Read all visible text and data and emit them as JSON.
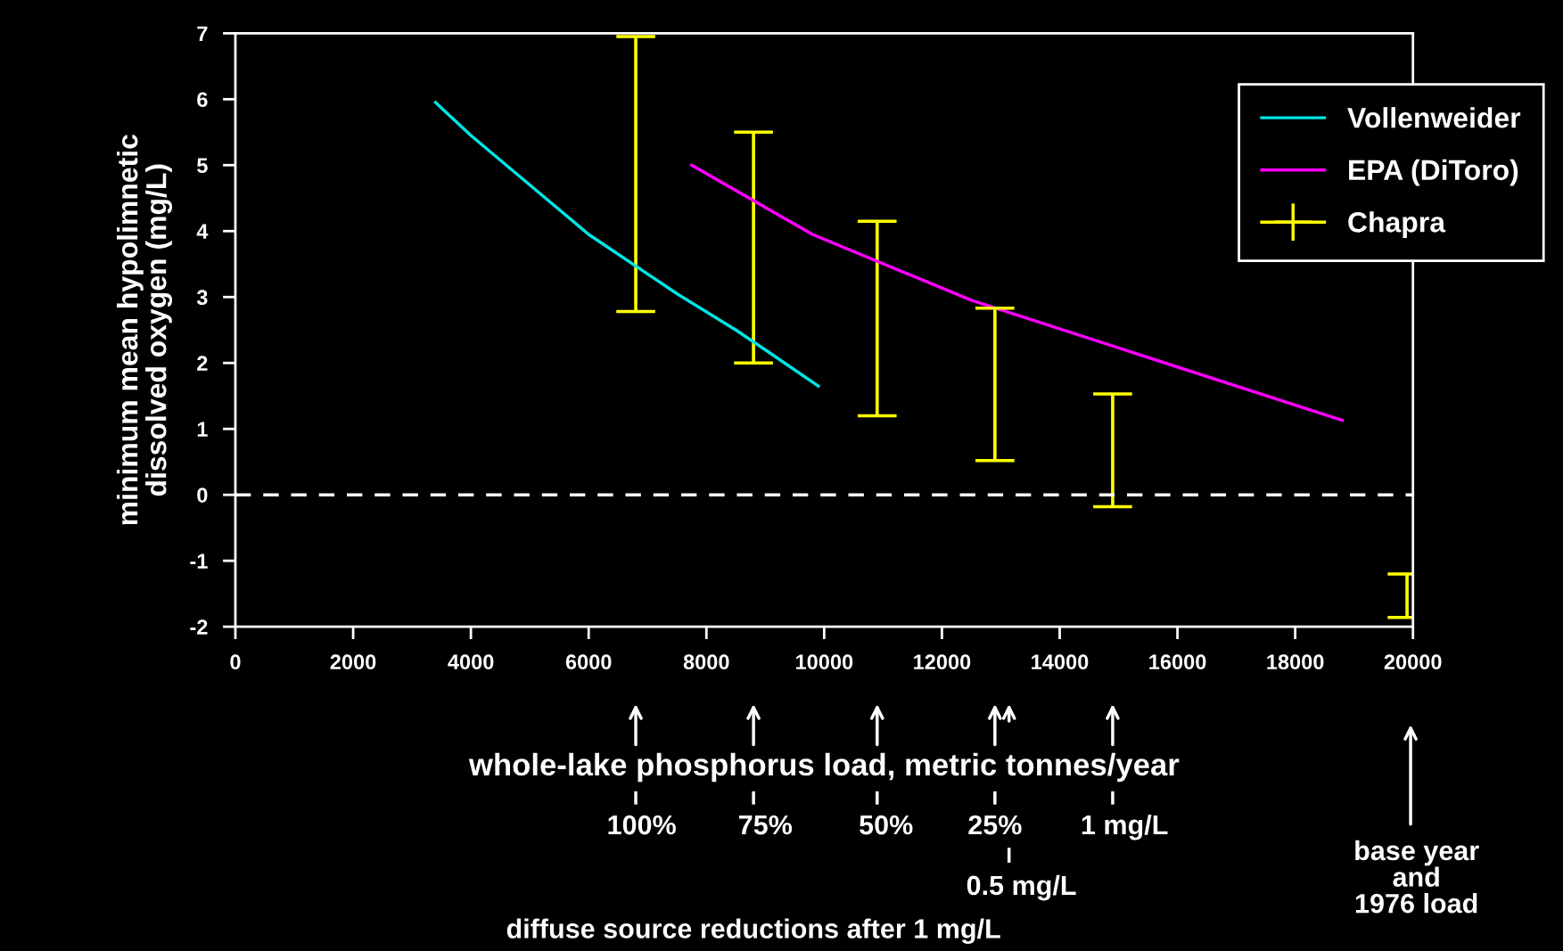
{
  "chart_data": {
    "type": "line",
    "xlabel": "whole-lake phosphorus load, metric tonnes/year",
    "ylabel": "minimum mean hypolimnetic\ndissolved oxygen (mg/L)",
    "xlim": [
      0,
      20000
    ],
    "xticks": [
      0,
      2000,
      4000,
      6000,
      8000,
      10000,
      12000,
      14000,
      16000,
      18000,
      20000
    ],
    "ylim": [
      -2,
      7
    ],
    "yticks": [
      -2,
      -1,
      0,
      1,
      2,
      3,
      4,
      5,
      6,
      7
    ],
    "grid": false,
    "legend": "top right",
    "series": [
      {
        "name": "Vollenweider",
        "color": "#00e5e5",
        "x": [
          3400,
          4000,
          5000,
          6000,
          7000,
          7500,
          8500,
          9000,
          9900
        ],
        "values": [
          5.95,
          5.45,
          4.7,
          3.95,
          3.35,
          3.05,
          2.5,
          2.2,
          1.65
        ]
      },
      {
        "name": "EPA (DiToro)",
        "color": "#ff00ff",
        "x": [
          7750,
          9800,
          12500,
          18800
        ],
        "values": [
          5.0,
          3.95,
          2.95,
          1.13
        ]
      },
      {
        "name": "Chapra",
        "color": "#ffff00",
        "type": "bar",
        "x": [
          6800,
          8800,
          10900,
          12900,
          14900,
          19900
        ],
        "base": [
          2.78,
          2.0,
          1.2,
          0.52,
          -0.18,
          -1.86
        ],
        "values": [
          4.17,
          3.5,
          2.95,
          2.31,
          1.71,
          0.66
        ]
      }
    ],
    "ref_lines": [
      {
        "axis": "y",
        "value": 0,
        "color": "#ffffff",
        "line_style": "dashed"
      }
    ],
    "annotations": [
      {
        "text": "100%",
        "x": 6800
      },
      {
        "text": "75%",
        "x": 8800
      },
      {
        "text": "50%",
        "x": 10900
      },
      {
        "text": "25%",
        "x": 12900
      },
      "0.5 mg/L",
      {
        "text": "1 mg/L",
        "x": 14900
      },
      "base year\nand\n1976 load",
      "diffuse source reductions after 1 mg/L"
    ]
  }
}
